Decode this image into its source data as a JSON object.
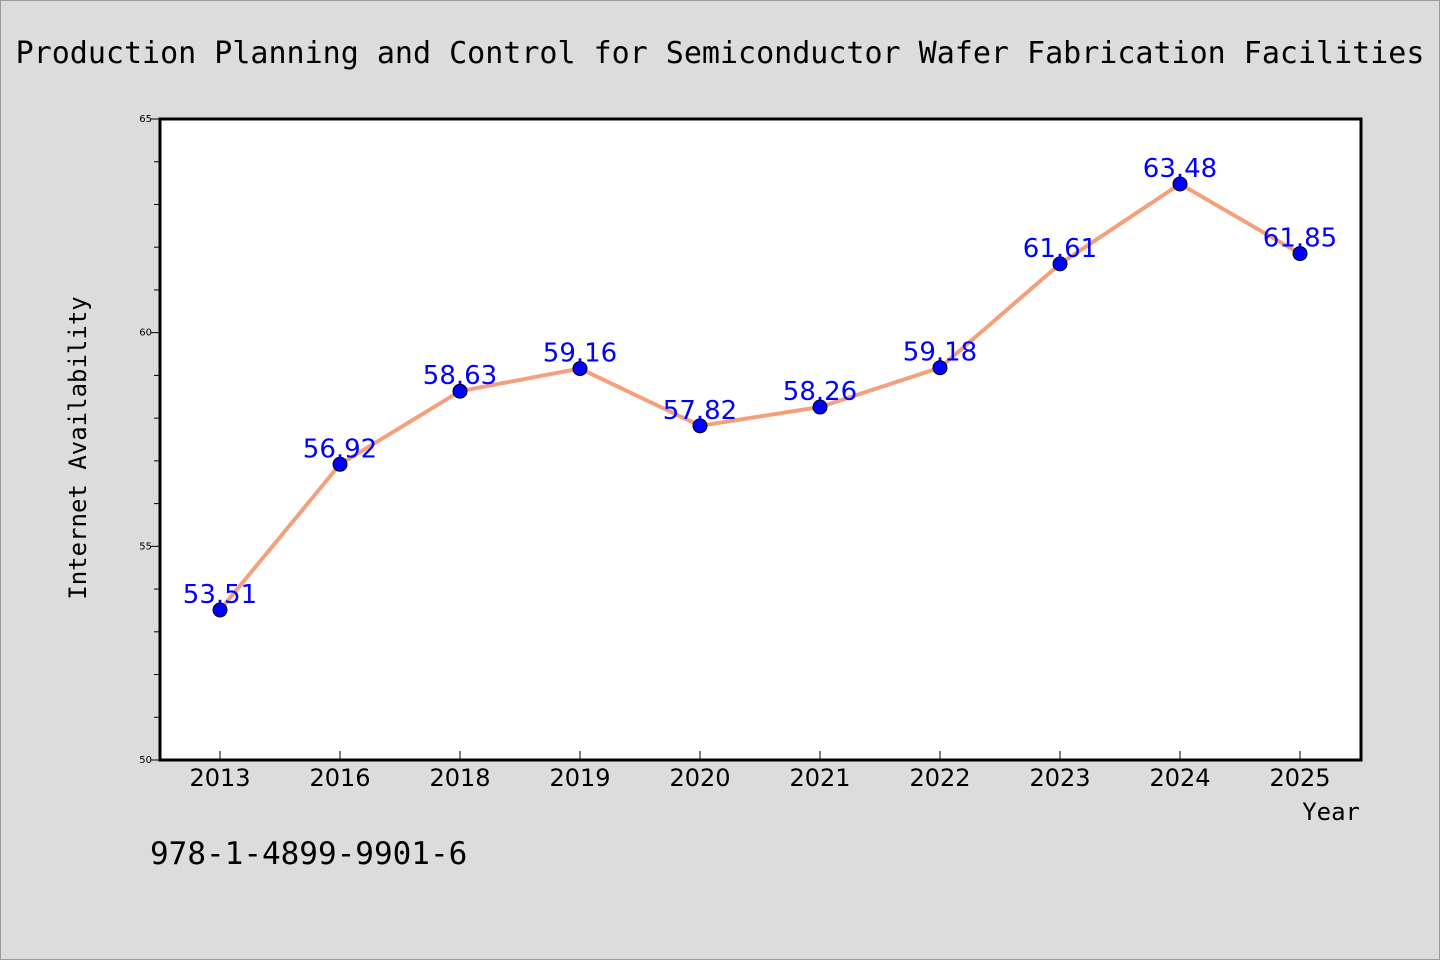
{
  "chart_data": {
    "type": "line",
    "title": "Production Planning and Control for Semiconductor Wafer Fabrication Facilities",
    "xlabel": "Year",
    "ylabel": "Internet Availability",
    "categories": [
      "2013",
      "2016",
      "2018",
      "2019",
      "2020",
      "2021",
      "2022",
      "2023",
      "2024",
      "2025"
    ],
    "series": [
      {
        "values": [
          53.51,
          56.92,
          58.63,
          59.16,
          57.82,
          58.26,
          59.18,
          61.61,
          63.48,
          61.85
        ]
      }
    ],
    "data_labels": [
      "53.51",
      "56.92",
      "58.63",
      "59.16",
      "57.82",
      "58.26",
      "59.18",
      "61.61",
      "63.48",
      "61.85"
    ],
    "ylim": [
      50,
      65
    ],
    "yticks": [
      "50",
      "55",
      "60",
      "65"
    ],
    "grid": false,
    "legend": "none",
    "line_color": "#f4a07c",
    "marker_color": "#0000ff",
    "label_color": "#0000ff"
  },
  "footer": {
    "isbn": "978-1-4899-9901-6"
  }
}
